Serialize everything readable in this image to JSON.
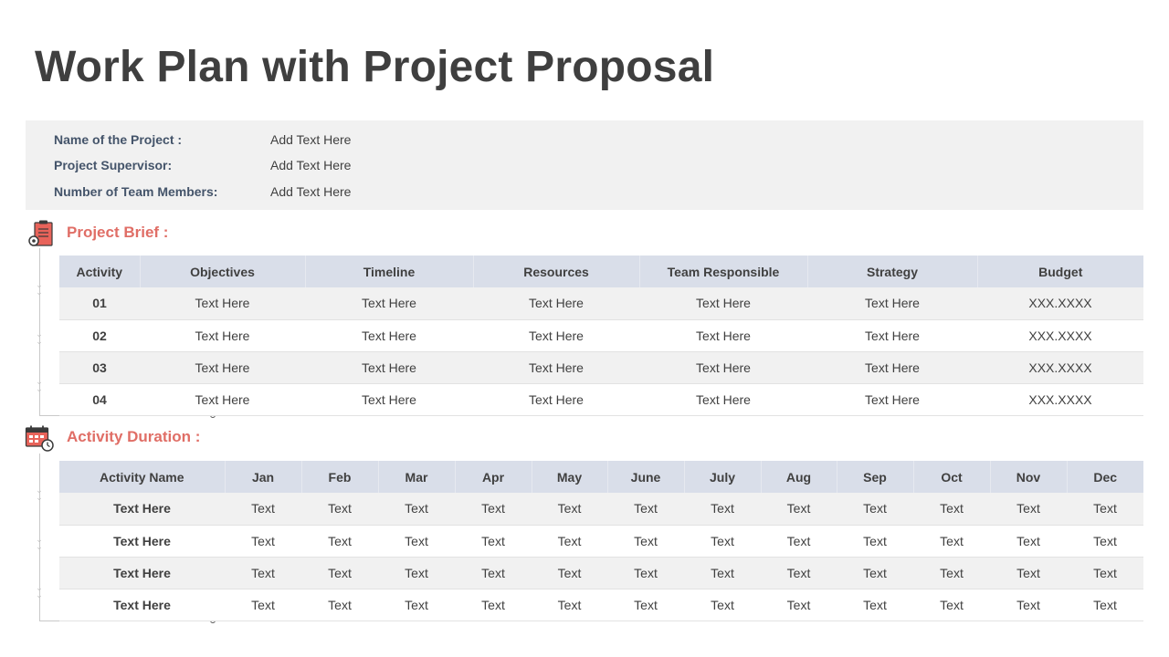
{
  "title": "Work Plan with Project Proposal",
  "info": [
    {
      "label": "Name of the Project :",
      "value": "Add Text Here"
    },
    {
      "label": "Project Supervisor:",
      "value": "Add Text Here"
    },
    {
      "label": "Number of Team Members:",
      "value": "Add Text Here"
    }
  ],
  "brief": {
    "heading": "Project Brief :",
    "icon": "clipboard-gear-icon",
    "columns": [
      "Activity",
      "Objectives",
      "Timeline",
      "Resources",
      "Team Responsible",
      "Strategy",
      "Budget"
    ],
    "rows": [
      [
        "01",
        "Text Here",
        "Text Here",
        "Text Here",
        "Text Here",
        "Text Here",
        "XXX.XXXX"
      ],
      [
        "02",
        "Text Here",
        "Text Here",
        "Text Here",
        "Text Here",
        "Text Here",
        "XXX.XXXX"
      ],
      [
        "03",
        "Text Here",
        "Text Here",
        "Text Here",
        "Text Here",
        "Text Here",
        "XXX.XXXX"
      ],
      [
        "04",
        "Text Here",
        "Text Here",
        "Text Here",
        "Text Here",
        "Text Here",
        "XXX.XXXX"
      ]
    ]
  },
  "duration": {
    "heading": "Activity Duration :",
    "icon": "calendar-clock-icon",
    "columns": [
      "Activity Name",
      "Jan",
      "Feb",
      "Mar",
      "Apr",
      "May",
      "June",
      "July",
      "Aug",
      "Sep",
      "Oct",
      "Nov",
      "Dec"
    ],
    "rows": [
      [
        "Text Here",
        "Text",
        "Text",
        "Text",
        "Text",
        "Text",
        "Text",
        "Text",
        "Text",
        "Text",
        "Text",
        "Text",
        "Text"
      ],
      [
        "Text Here",
        "Text",
        "Text",
        "Text",
        "Text",
        "Text",
        "Text",
        "Text",
        "Text",
        "Text",
        "Text",
        "Text",
        "Text"
      ],
      [
        "Text Here",
        "Text",
        "Text",
        "Text",
        "Text",
        "Text",
        "Text",
        "Text",
        "Text",
        "Text",
        "Text",
        "Text",
        "Text"
      ],
      [
        "Text Here",
        "Text",
        "Text",
        "Text",
        "Text",
        "Text",
        "Text",
        "Text",
        "Text",
        "Text",
        "Text",
        "Text",
        "Text"
      ]
    ]
  },
  "colors": {
    "accent": "#e06e66",
    "label": "#44546a",
    "header_bg": "#d9dee9",
    "stripe_bg": "#f1f1f1"
  }
}
